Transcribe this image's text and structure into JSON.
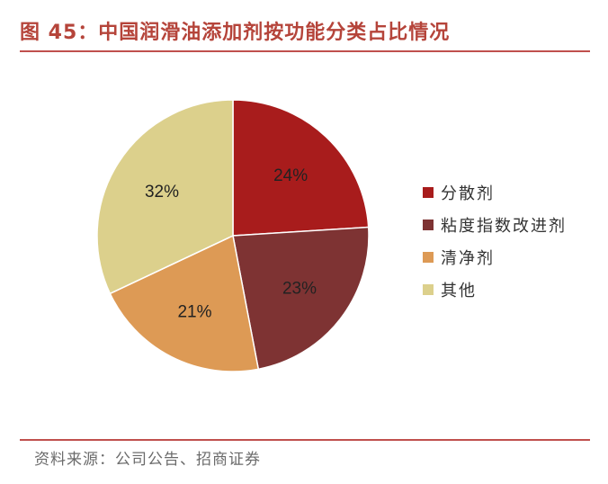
{
  "title": "图 45：中国润滑油添加剂按功能分类占比情况",
  "source": "资料来源：公司公告、招商证券",
  "colors": {
    "accent": "#c0504d",
    "title": "#b5443a"
  },
  "chart_data": {
    "type": "pie",
    "title": "",
    "categories": [
      "分散剂",
      "粘度指数改进剂",
      "清净剂",
      "其他"
    ],
    "values": [
      24,
      23,
      21,
      32
    ],
    "labels": [
      "24%",
      "23%",
      "21%",
      "32%"
    ],
    "colors": [
      "#a81c1c",
      "#7e3333",
      "#dd9a55",
      "#dcd08c"
    ],
    "legend_position": "right",
    "start_angle": "12 o'clock",
    "direction": "clockwise"
  }
}
